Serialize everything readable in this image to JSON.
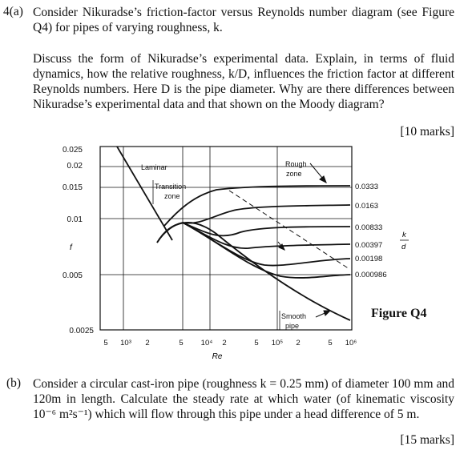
{
  "question": {
    "number": "4(a)",
    "intro": "Consider Nikuradse’s friction-factor versus Reynolds number diagram (see Figure Q4) for pipes of varying roughness, k.",
    "discussion": "Discuss the form of Nikuradse’s experimental data. Explain, in terms of fluid dynamics, how the relative roughness, k/D, influences the friction factor at different Reynolds numbers. Here D is the pipe diameter. Why are there differences between Nikuradse’s experimental data and that shown on the Moody diagram?",
    "marks_a": "[10 marks]",
    "part_b_label": "(b)",
    "part_b_text": "Consider a circular cast-iron pipe (roughness k = 0.25 mm) of diameter 100 mm and 120m in length. Calculate the steady rate at which water (of kinematic viscosity 10⁻⁶ m²s⁻¹) which will flow through this pipe under a head difference of 5 m.",
    "marks_b": "[15 marks]"
  },
  "figure": {
    "caption": "Figure Q4",
    "y_axis_label": "f",
    "x_axis_label": "Re",
    "y_ticks": [
      "0.025",
      "0.02",
      "0.015",
      "0.01",
      "0.005",
      "0.0025"
    ],
    "x_ticks": [
      "5",
      "10³",
      "2",
      "5",
      "10⁴",
      "2",
      "5",
      "10⁵",
      "2",
      "5",
      "10⁶"
    ],
    "annotations": {
      "laminar": "Laminar",
      "transition_line1": "Transition",
      "transition_line2": "zone",
      "rough_line1": "Rough",
      "rough_line2": "zone",
      "smooth_line1": "Smooth",
      "smooth_line2": "pipe"
    },
    "right_axis_label_top": "k",
    "right_axis_label_bottom": "d",
    "curve_labels": [
      "0.0333",
      "0.0163",
      "0.00833",
      "0.00397",
      "0.00198",
      "0.000986"
    ]
  }
}
